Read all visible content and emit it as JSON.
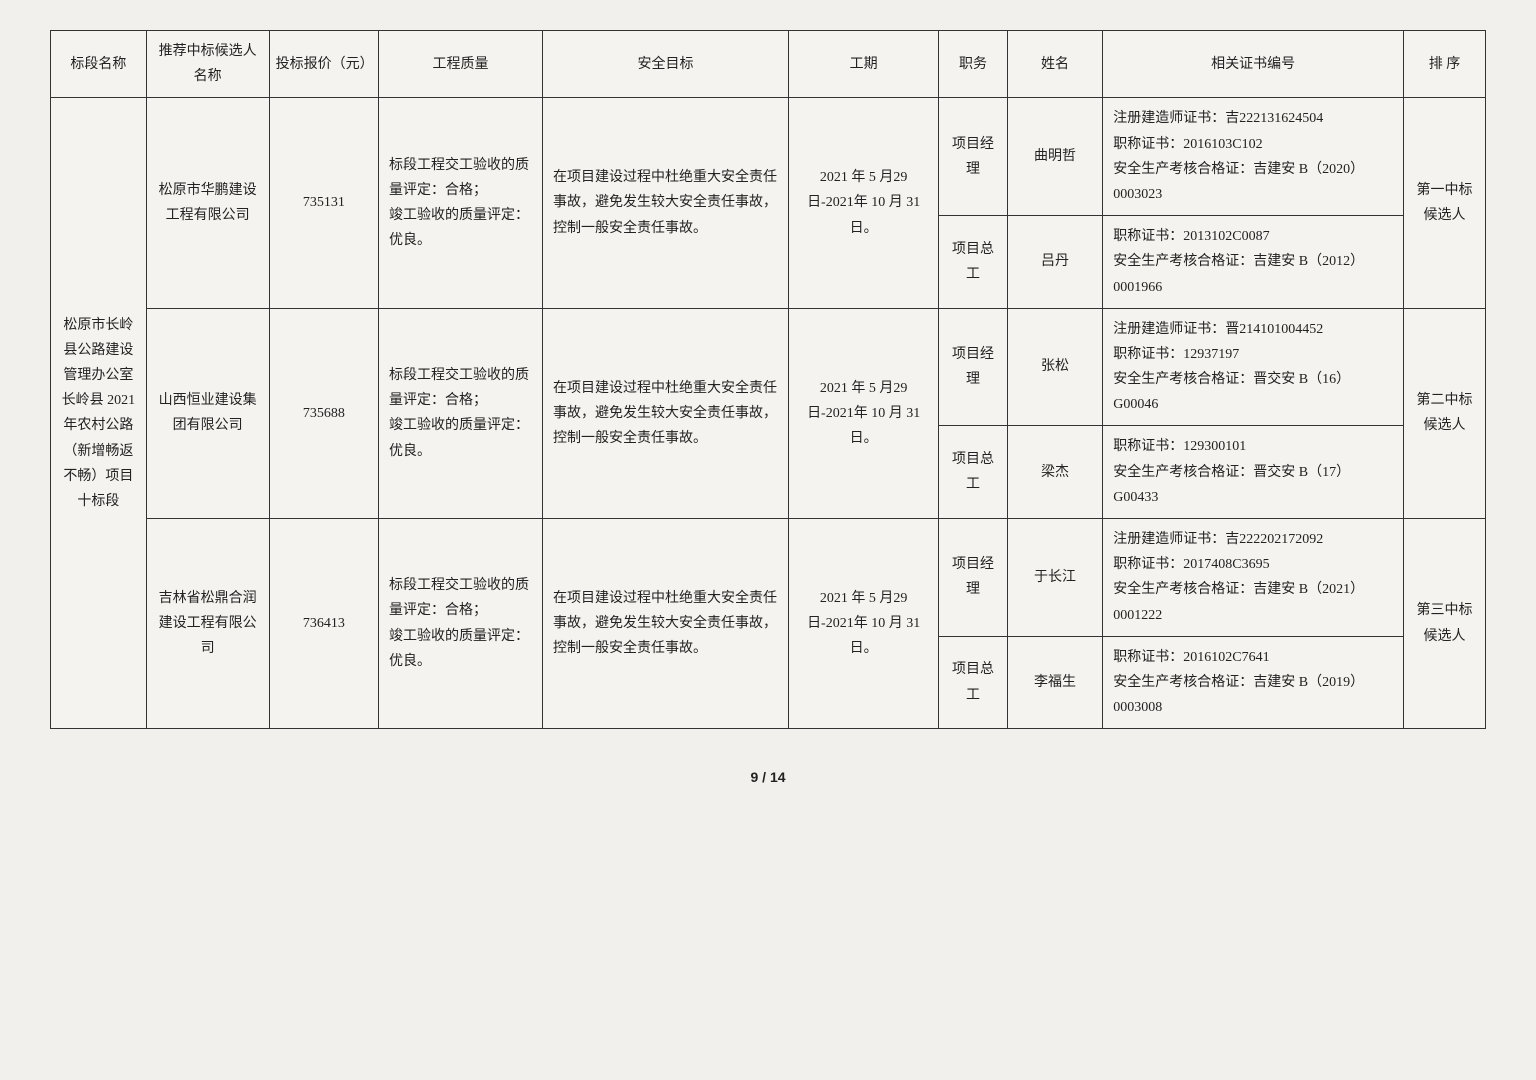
{
  "headers": {
    "section": "标段名称",
    "candidate": "推荐中标候选人名称",
    "price": "投标报价（元）",
    "quality": "工程质量",
    "safety": "安全目标",
    "period": "工期",
    "role": "职务",
    "name": "姓名",
    "cert": "相关证书编号",
    "rank": "排 序"
  },
  "section_name": "松原市长岭县公路建设管理办公室长岭县 2021 年农村公路（新增畅返不畅）项目十标段",
  "quality_text": "标段工程交工验收的质量评定：合格；\n竣工验收的质量评定：优良。",
  "safety_text": "在项目建设过程中杜绝重大安全责任事故，避免发生较大安全责任事故，控制一般安全责任事故。",
  "period_text": "2021 年 5 月29 日-2021年 10 月 31日。",
  "candidates": [
    {
      "company": "松原市华鹏建设工程有限公司",
      "price": "735131",
      "rank": "第一中标候选人",
      "people": [
        {
          "role": "项目经理",
          "name": "曲明哲",
          "cert": "注册建造师证书：吉222131624504\n职称证书：2016103C102\n安全生产考核合格证：吉建安 B（2020）0003023"
        },
        {
          "role": "项目总工",
          "name": "吕丹",
          "cert": "职称证书：2013102C0087\n安全生产考核合格证：吉建安 B（2012）0001966"
        }
      ]
    },
    {
      "company": "山西恒业建设集团有限公司",
      "price": "735688",
      "rank": "第二中标候选人",
      "people": [
        {
          "role": "项目经理",
          "name": "张松",
          "cert": "注册建造师证书：晋214101004452\n职称证书：12937197\n安全生产考核合格证：晋交安 B（16）G00046"
        },
        {
          "role": "项目总工",
          "name": "梁杰",
          "cert": "职称证书：129300101\n安全生产考核合格证：晋交安 B（17）G00433"
        }
      ]
    },
    {
      "company": "吉林省松鼎合润建设工程有限公司",
      "price": "736413",
      "rank": "第三中标候选人",
      "people": [
        {
          "role": "项目经理",
          "name": "于长江",
          "cert": "注册建造师证书：吉222202172092\n职称证书：2017408C3695\n安全生产考核合格证：吉建安 B（2021）0001222"
        },
        {
          "role": "项目总工",
          "name": "李福生",
          "cert": "职称证书：2016102C7641\n安全生产考核合格证：吉建安 B（2019）0003008"
        }
      ]
    }
  ],
  "page_footer": "9 / 14",
  "styling": {
    "background_color": "#f2f0ec",
    "border_color": "#333333",
    "font_family": "SimSun",
    "font_size_pt": 11,
    "line_height": 1.8
  }
}
